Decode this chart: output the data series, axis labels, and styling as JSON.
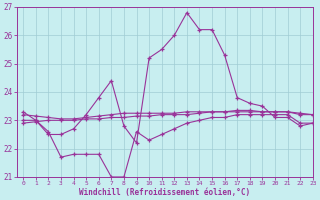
{
  "x": [
    0,
    1,
    2,
    3,
    4,
    5,
    6,
    7,
    8,
    9,
    10,
    11,
    12,
    13,
    14,
    15,
    16,
    17,
    18,
    19,
    20,
    21,
    22,
    23
  ],
  "line_peak": [
    23.3,
    23.0,
    22.5,
    22.5,
    22.7,
    23.2,
    23.8,
    24.4,
    22.8,
    22.2,
    25.2,
    25.5,
    26.0,
    26.8,
    26.2,
    26.2,
    25.3,
    23.8,
    23.6,
    23.5,
    23.1,
    23.1,
    22.8,
    22.9
  ],
  "line_dip": [
    23.0,
    23.0,
    22.6,
    21.7,
    21.8,
    21.8,
    21.8,
    21.0,
    21.0,
    22.6,
    22.3,
    22.5,
    22.7,
    22.9,
    23.0,
    23.1,
    23.1,
    23.2,
    23.2,
    23.2,
    23.2,
    23.2,
    22.9,
    22.9
  ],
  "line_flat1": [
    22.9,
    22.95,
    23.0,
    23.0,
    23.0,
    23.05,
    23.05,
    23.1,
    23.1,
    23.15,
    23.15,
    23.2,
    23.2,
    23.2,
    23.25,
    23.3,
    23.3,
    23.3,
    23.3,
    23.3,
    23.3,
    23.3,
    23.2,
    23.2
  ],
  "line_flat2": [
    23.2,
    23.15,
    23.1,
    23.05,
    23.05,
    23.1,
    23.15,
    23.2,
    23.25,
    23.25,
    23.25,
    23.25,
    23.25,
    23.3,
    23.3,
    23.3,
    23.3,
    23.35,
    23.35,
    23.3,
    23.3,
    23.3,
    23.25,
    23.2
  ],
  "bg_color": "#c8eef0",
  "grid_color": "#a0ccd4",
  "line_color": "#993399",
  "xlabel": "Windchill (Refroidissement éolien,°C)",
  "ylim": [
    21,
    27
  ],
  "xlim": [
    -0.5,
    23
  ],
  "yticks": [
    21,
    22,
    23,
    24,
    25,
    26,
    27
  ],
  "xticks": [
    0,
    1,
    2,
    3,
    4,
    5,
    6,
    7,
    8,
    9,
    10,
    11,
    12,
    13,
    14,
    15,
    16,
    17,
    18,
    19,
    20,
    21,
    22,
    23
  ]
}
